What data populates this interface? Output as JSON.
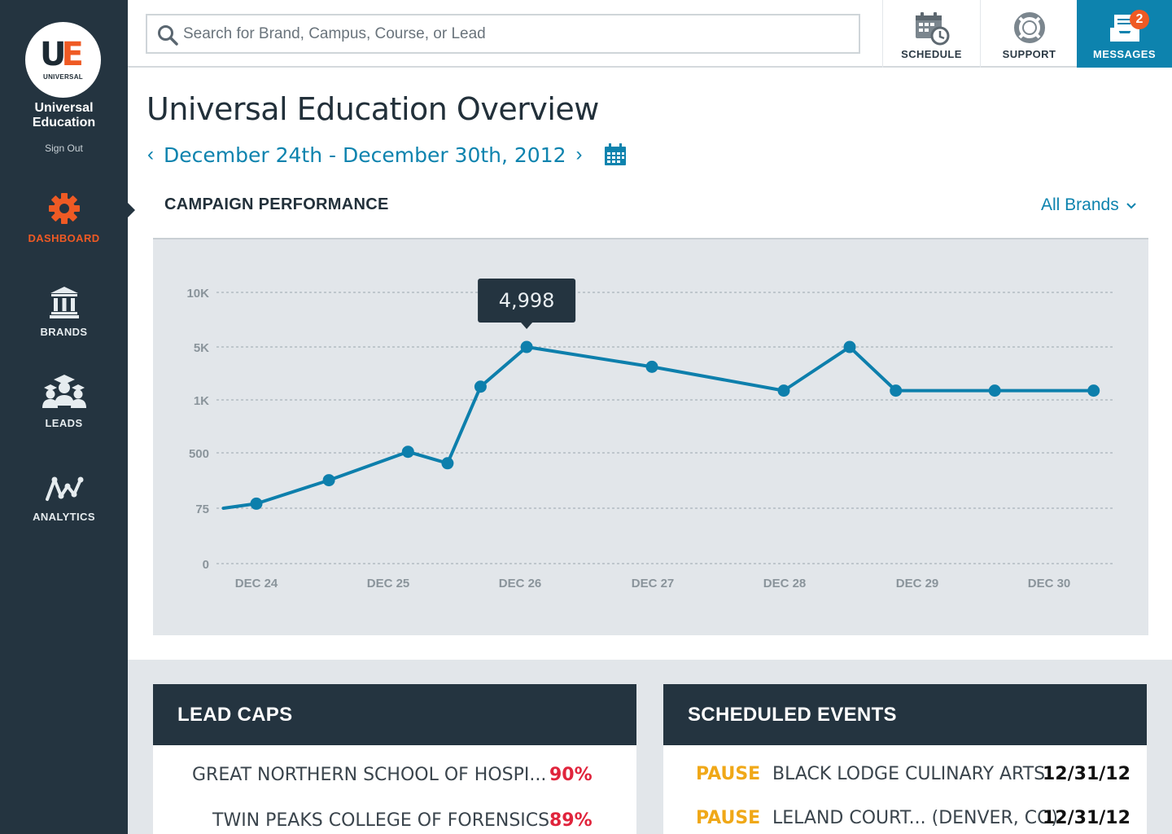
{
  "sidebar": {
    "logo_letters_u": "U",
    "logo_letters_e": "E",
    "logo_sub": "UNIVERSAL",
    "org_name_line1": "Universal",
    "org_name_line2": "Education",
    "sign_out": "Sign Out",
    "nav": [
      {
        "label": "DASHBOARD",
        "icon": "gear-icon",
        "active": true
      },
      {
        "label": "BRANDS",
        "icon": "institution-icon",
        "active": false
      },
      {
        "label": "LEADS",
        "icon": "graduates-icon",
        "active": false
      },
      {
        "label": "ANALYTICS",
        "icon": "analytics-icon",
        "active": false
      }
    ]
  },
  "topbar": {
    "search_placeholder": "Search for Brand, Campus, Course, or Lead",
    "schedule_label": "SCHEDULE",
    "support_label": "SUPPORT",
    "messages_label": "MESSAGES",
    "messages_count": "2"
  },
  "main": {
    "title": "Universal Education Overview",
    "date_range": "December 24th - December 30th, 2012",
    "prev_arrow": "‹",
    "next_arrow": "›",
    "section_title": "CAMPAIGN PERFORMANCE",
    "brand_filter": "All Brands"
  },
  "chart_data": {
    "type": "line",
    "title": "",
    "xlabel": "",
    "ylabel": "",
    "y_ticks": [
      "0",
      "75",
      "500",
      "1K",
      "5K",
      "10K"
    ],
    "x_ticks": [
      "DEC 24",
      "DEC 25",
      "DEC 26",
      "DEC 27",
      "DEC 28",
      "DEC 29",
      "DEC 30"
    ],
    "tooltip": "4,998",
    "series": [
      {
        "color": "#0d7fac",
        "points": [
          {
            "x": 23.75,
            "y": 75
          },
          {
            "x": 24.0,
            "y": 110
          },
          {
            "x": 24.55,
            "y": 290
          },
          {
            "x": 25.15,
            "y": 510
          },
          {
            "x": 25.45,
            "y": 420
          },
          {
            "x": 25.7,
            "y": 2000
          },
          {
            "x": 26.05,
            "y": 4998
          },
          {
            "x": 27.0,
            "y": 3500
          },
          {
            "x": 28.0,
            "y": 1700
          },
          {
            "x": 28.5,
            "y": 4998
          },
          {
            "x": 28.85,
            "y": 1700
          },
          {
            "x": 29.6,
            "y": 1700
          },
          {
            "x": 30.35,
            "y": 1700
          }
        ]
      }
    ]
  },
  "lead_caps": {
    "title": "LEAD CAPS",
    "rows": [
      {
        "name": "GREAT NORTHERN SCHOOL OF HOSPI...",
        "pct": "90%"
      },
      {
        "name": "TWIN PEAKS COLLEGE OF FORENSICS",
        "pct": "89%"
      }
    ]
  },
  "scheduled_events": {
    "title": "SCHEDULED EVENTS",
    "rows": [
      {
        "action": "PAUSE",
        "name": "BLACK LODGE CULINARY ARTS",
        "date": "12/31/12"
      },
      {
        "action": "PAUSE",
        "name": "LELAND COURT... (DENVER, CO)",
        "date": "12/31/12"
      }
    ]
  },
  "colors": {
    "sidebar_bg": "#243440",
    "accent_orange": "#ef5a24",
    "accent_blue": "#0d83ae",
    "line_blue": "#0d7fac",
    "pct_red": "#e0243c",
    "action_yellow": "#f0a818"
  }
}
